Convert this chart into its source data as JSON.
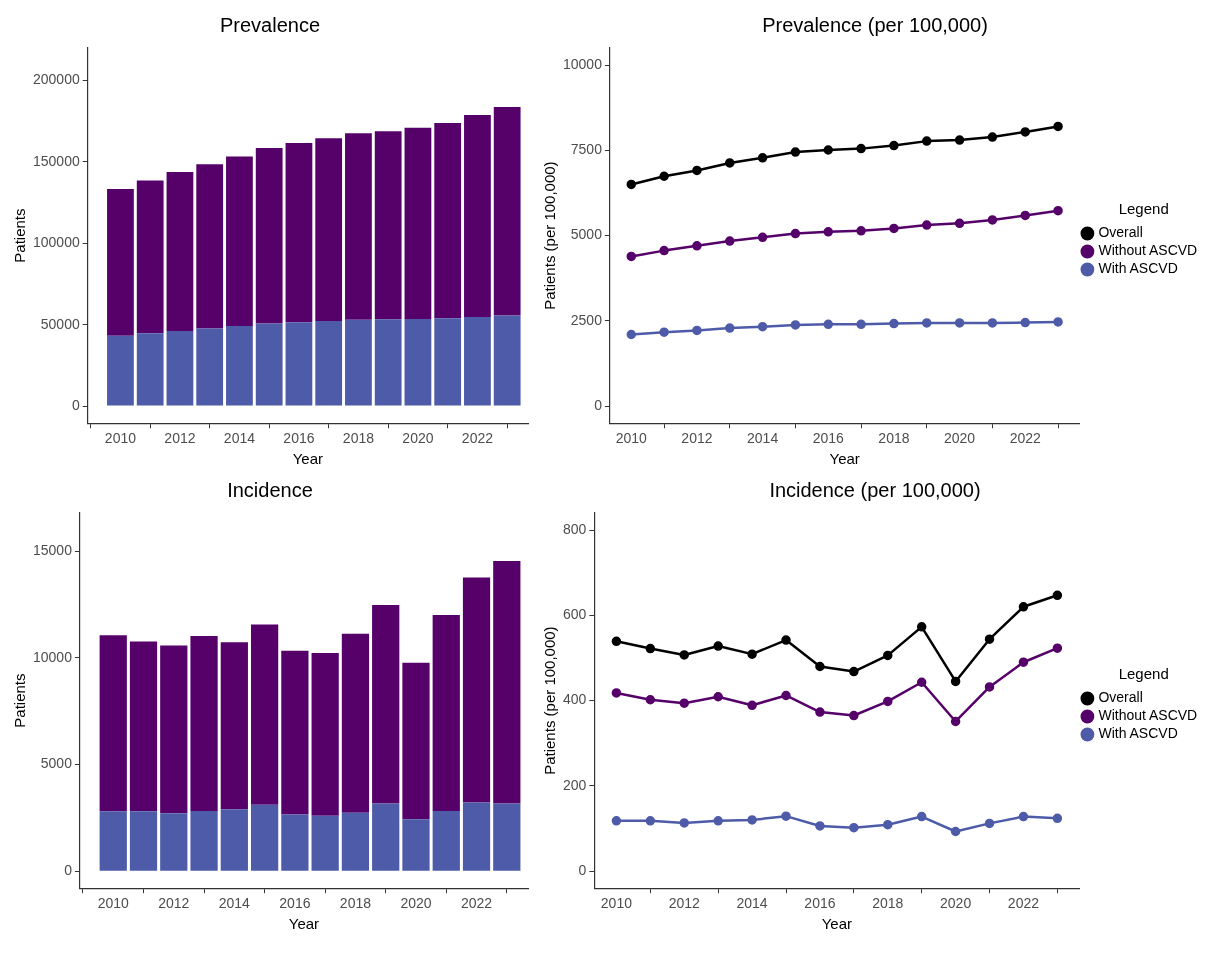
{
  "chart_data": [
    {
      "type": "bar",
      "title": "Prevalence",
      "xlabel": "Year",
      "ylabel": "Patients",
      "stacked": true,
      "grid": false,
      "x": [
        2010,
        2011,
        2012,
        2013,
        2014,
        2015,
        2016,
        2017,
        2018,
        2019,
        2020,
        2021,
        2022,
        2023
      ],
      "xlim": [
        2008.9,
        2023.7
      ],
      "xticks": [
        2010,
        2012,
        2014,
        2016,
        2018,
        2020,
        2022
      ],
      "ylim": [
        -10500,
        220000
      ],
      "yticks": [
        0,
        50000,
        100000,
        150000,
        200000
      ],
      "series": [
        {
          "color": "#4e5ba8",
          "values": [
            43200,
            44800,
            46100,
            47700,
            49200,
            50800,
            51500,
            52300,
            53100,
            53300,
            53500,
            53900,
            54800,
            55600
          ]
        },
        {
          "color": "#56006a",
          "values": [
            90200,
            93800,
            97700,
            100900,
            104100,
            107700,
            110100,
            112200,
            114500,
            115600,
            117500,
            120000,
            124000,
            128200
          ]
        }
      ]
    },
    {
      "type": "line",
      "title": "Prevalence (per 100,000)",
      "xlabel": "Year",
      "ylabel": "Patients (per 100,000)",
      "legend": "right",
      "legend_title": "Legend",
      "marker": "circle",
      "grid": false,
      "x": [
        2010,
        2011,
        2012,
        2013,
        2014,
        2015,
        2016,
        2017,
        2018,
        2019,
        2020,
        2021,
        2022,
        2023
      ],
      "xlim": [
        2009.35,
        2023.65
      ],
      "xticks": [
        2010,
        2012,
        2014,
        2016,
        2018,
        2020,
        2022
      ],
      "ylim": [
        -500,
        10500
      ],
      "yticks": [
        0,
        2500,
        5000,
        7500,
        10000
      ],
      "series": [
        {
          "name": "Overall",
          "color": "#000000",
          "values": [
            6500,
            6740,
            6910,
            7130,
            7280,
            7450,
            7510,
            7550,
            7640,
            7770,
            7800,
            7890,
            8040,
            8200
          ]
        },
        {
          "name": "Without ASCVD",
          "color": "#56006a",
          "values": [
            4390,
            4560,
            4700,
            4840,
            4950,
            5060,
            5110,
            5140,
            5210,
            5310,
            5360,
            5460,
            5590,
            5730
          ]
        },
        {
          "name": "With ASCVD",
          "color": "#4e5ba8",
          "values": [
            2100,
            2170,
            2220,
            2290,
            2330,
            2380,
            2400,
            2400,
            2420,
            2440,
            2440,
            2440,
            2450,
            2470
          ]
        }
      ]
    },
    {
      "type": "bar",
      "title": "Incidence",
      "xlabel": "Year",
      "ylabel": "Patients",
      "stacked": true,
      "grid": false,
      "x": [
        2010,
        2011,
        2012,
        2013,
        2014,
        2015,
        2016,
        2017,
        2018,
        2019,
        2020,
        2021,
        2022,
        2023
      ],
      "xlim": [
        2008.9,
        2023.7
      ],
      "xticks": [
        2010,
        2012,
        2014,
        2016,
        2018,
        2020,
        2022
      ],
      "ylim": [
        -800,
        16800
      ],
      "yticks": [
        0,
        5000,
        10000,
        15000
      ],
      "series": [
        {
          "color": "#4e5ba8",
          "values": [
            2810,
            2810,
            2720,
            2820,
            2900,
            3110,
            2660,
            2600,
            2740,
            3170,
            2440,
            2820,
            3220,
            3170
          ]
        },
        {
          "color": "#56006a",
          "values": [
            8250,
            7960,
            7870,
            8210,
            7840,
            8460,
            7680,
            7630,
            8400,
            9310,
            7340,
            9200,
            10560,
            11380
          ]
        }
      ]
    },
    {
      "type": "line",
      "title": "Incidence (per 100,000)",
      "xlabel": "Year",
      "ylabel": "Patients (per 100,000)",
      "legend": "right",
      "legend_title": "Legend",
      "marker": "circle",
      "grid": false,
      "x": [
        2010,
        2011,
        2012,
        2013,
        2014,
        2015,
        2016,
        2017,
        2018,
        2019,
        2020,
        2021,
        2022,
        2023
      ],
      "xlim": [
        2009.35,
        2023.65
      ],
      "xticks": [
        2010,
        2012,
        2014,
        2016,
        2018,
        2020,
        2022
      ],
      "ylim": [
        -40,
        840
      ],
      "yticks": [
        0,
        200,
        400,
        600,
        800
      ],
      "series": [
        {
          "name": "Overall",
          "color": "#000000",
          "values": [
            539,
            522,
            507,
            528,
            509,
            542,
            480,
            468,
            506,
            573,
            445,
            544,
            620,
            647
          ]
        },
        {
          "name": "Without ASCVD",
          "color": "#56006a",
          "values": [
            418,
            402,
            394,
            409,
            389,
            412,
            373,
            365,
            398,
            443,
            351,
            432,
            490,
            523
          ]
        },
        {
          "name": "With ASCVD",
          "color": "#4e5ba8",
          "values": [
            118,
            118,
            113,
            118,
            120,
            129,
            106,
            102,
            109,
            128,
            93,
            112,
            128,
            124
          ]
        }
      ]
    }
  ]
}
